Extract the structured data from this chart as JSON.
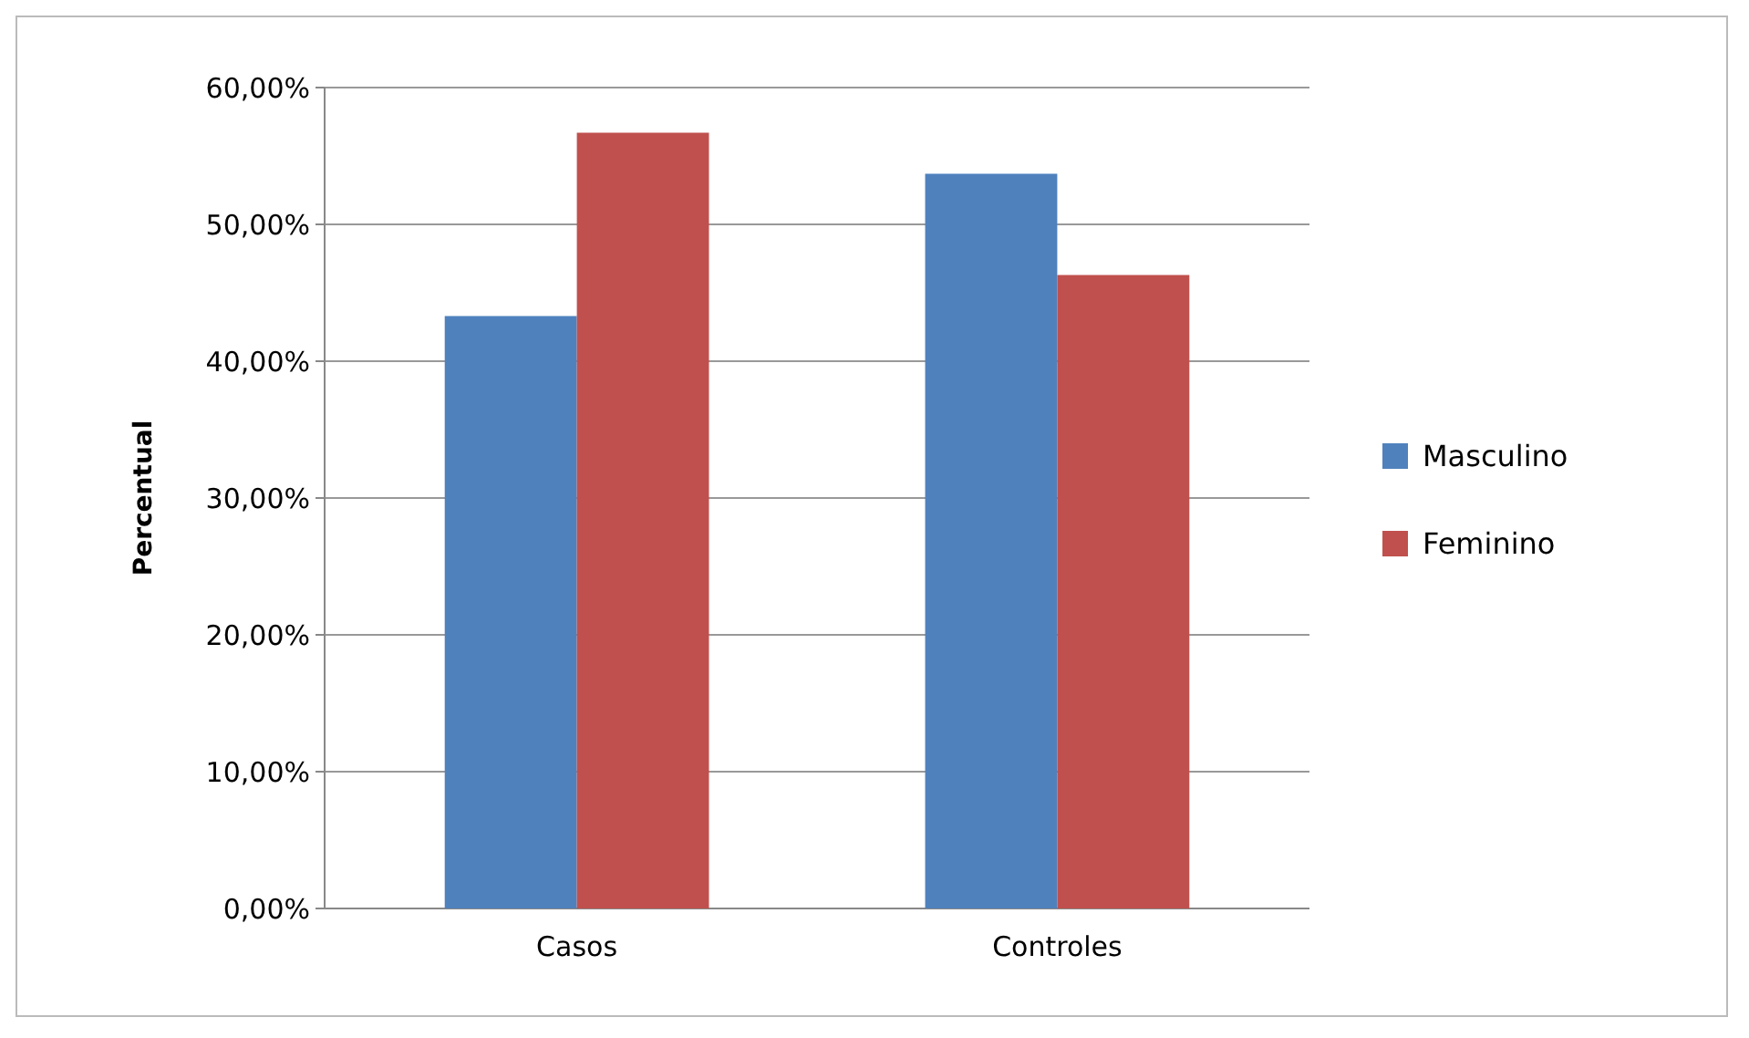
{
  "chart_data": {
    "type": "bar",
    "ylabel": "Percentual",
    "categories": [
      "Casos",
      "Controles"
    ],
    "series": [
      {
        "name": "Masculino",
        "color": "#4f81bd",
        "values": [
          43.3,
          53.7
        ]
      },
      {
        "name": "Feminino",
        "color": "#c0504d",
        "values": [
          56.7,
          46.3
        ]
      }
    ],
    "ylim": [
      0,
      60
    ],
    "yticks": [
      {
        "value": 0,
        "label": "0,00%"
      },
      {
        "value": 10,
        "label": "10,00%"
      },
      {
        "value": 20,
        "label": "20,00%"
      },
      {
        "value": 30,
        "label": "30,00%"
      },
      {
        "value": 40,
        "label": "40,00%"
      },
      {
        "value": 50,
        "label": "50,00%"
      },
      {
        "value": 60,
        "label": "60,00%"
      }
    ],
    "grid": "y",
    "legend": "right"
  }
}
